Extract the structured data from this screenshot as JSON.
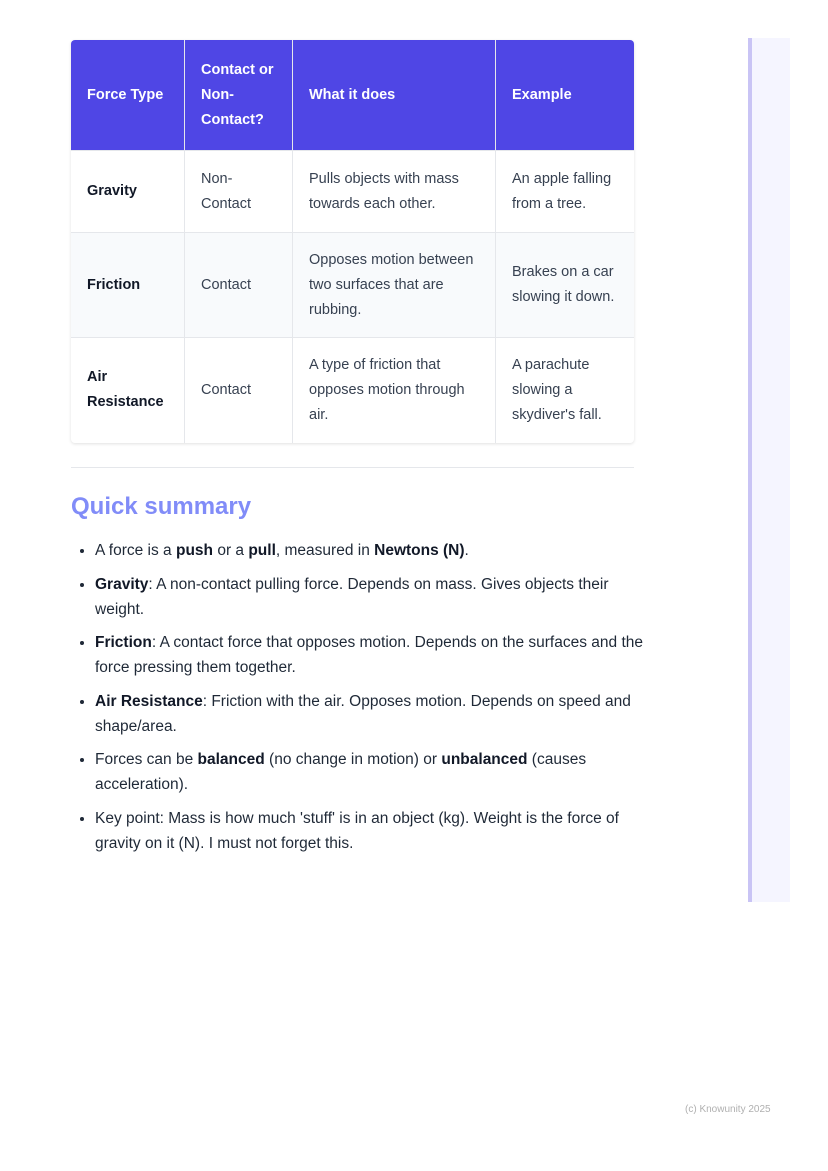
{
  "table": {
    "headers": [
      "Force Type",
      "Contact or Non-Contact?",
      "What it does",
      "Example"
    ],
    "rows": [
      {
        "force": "Gravity",
        "contact": "Non-Contact",
        "does": "Pulls objects with mass towards each other.",
        "example": "An apple falling from a tree."
      },
      {
        "force": "Friction",
        "contact": "Contact",
        "does": "Opposes motion between two surfaces that are rubbing.",
        "example": "Brakes on a car slowing it down."
      },
      {
        "force": "Air Resistance",
        "contact": "Contact",
        "does": "A type of friction that opposes motion through air.",
        "example": "A parachute slowing a skydiver's fall."
      }
    ]
  },
  "summary": {
    "heading": "Quick summary",
    "items": [
      [
        {
          "t": "A force is a "
        },
        {
          "b": "push"
        },
        {
          "t": " or a "
        },
        {
          "b": "pull"
        },
        {
          "t": ", measured in "
        },
        {
          "b": "Newtons (N)"
        },
        {
          "t": "."
        }
      ],
      [
        {
          "b": "Gravity"
        },
        {
          "t": ": A non-contact pulling force. Depends on mass. Gives objects their weight."
        }
      ],
      [
        {
          "b": "Friction"
        },
        {
          "t": ": A contact force that opposes motion. Depends on the surfaces and the force pressing them together."
        }
      ],
      [
        {
          "b": "Air Resistance"
        },
        {
          "t": ": Friction with the air. Opposes motion. Depends on speed and shape/area."
        }
      ],
      [
        {
          "t": "Forces can be "
        },
        {
          "b": "balanced"
        },
        {
          "t": " (no change in motion) or "
        },
        {
          "b": "unbalanced"
        },
        {
          "t": " (causes acceleration)."
        }
      ],
      [
        {
          "t": "Key point: Mass is how much 'stuff' is in an object (kg). Weight is the force of gravity on it (N). I must not forget this."
        }
      ]
    ]
  },
  "footer": "(c) Knowunity 2025",
  "colors": {
    "header_bg": "#4f46e5",
    "heading": "#818cf8",
    "side_border": "#c9c4f5"
  }
}
